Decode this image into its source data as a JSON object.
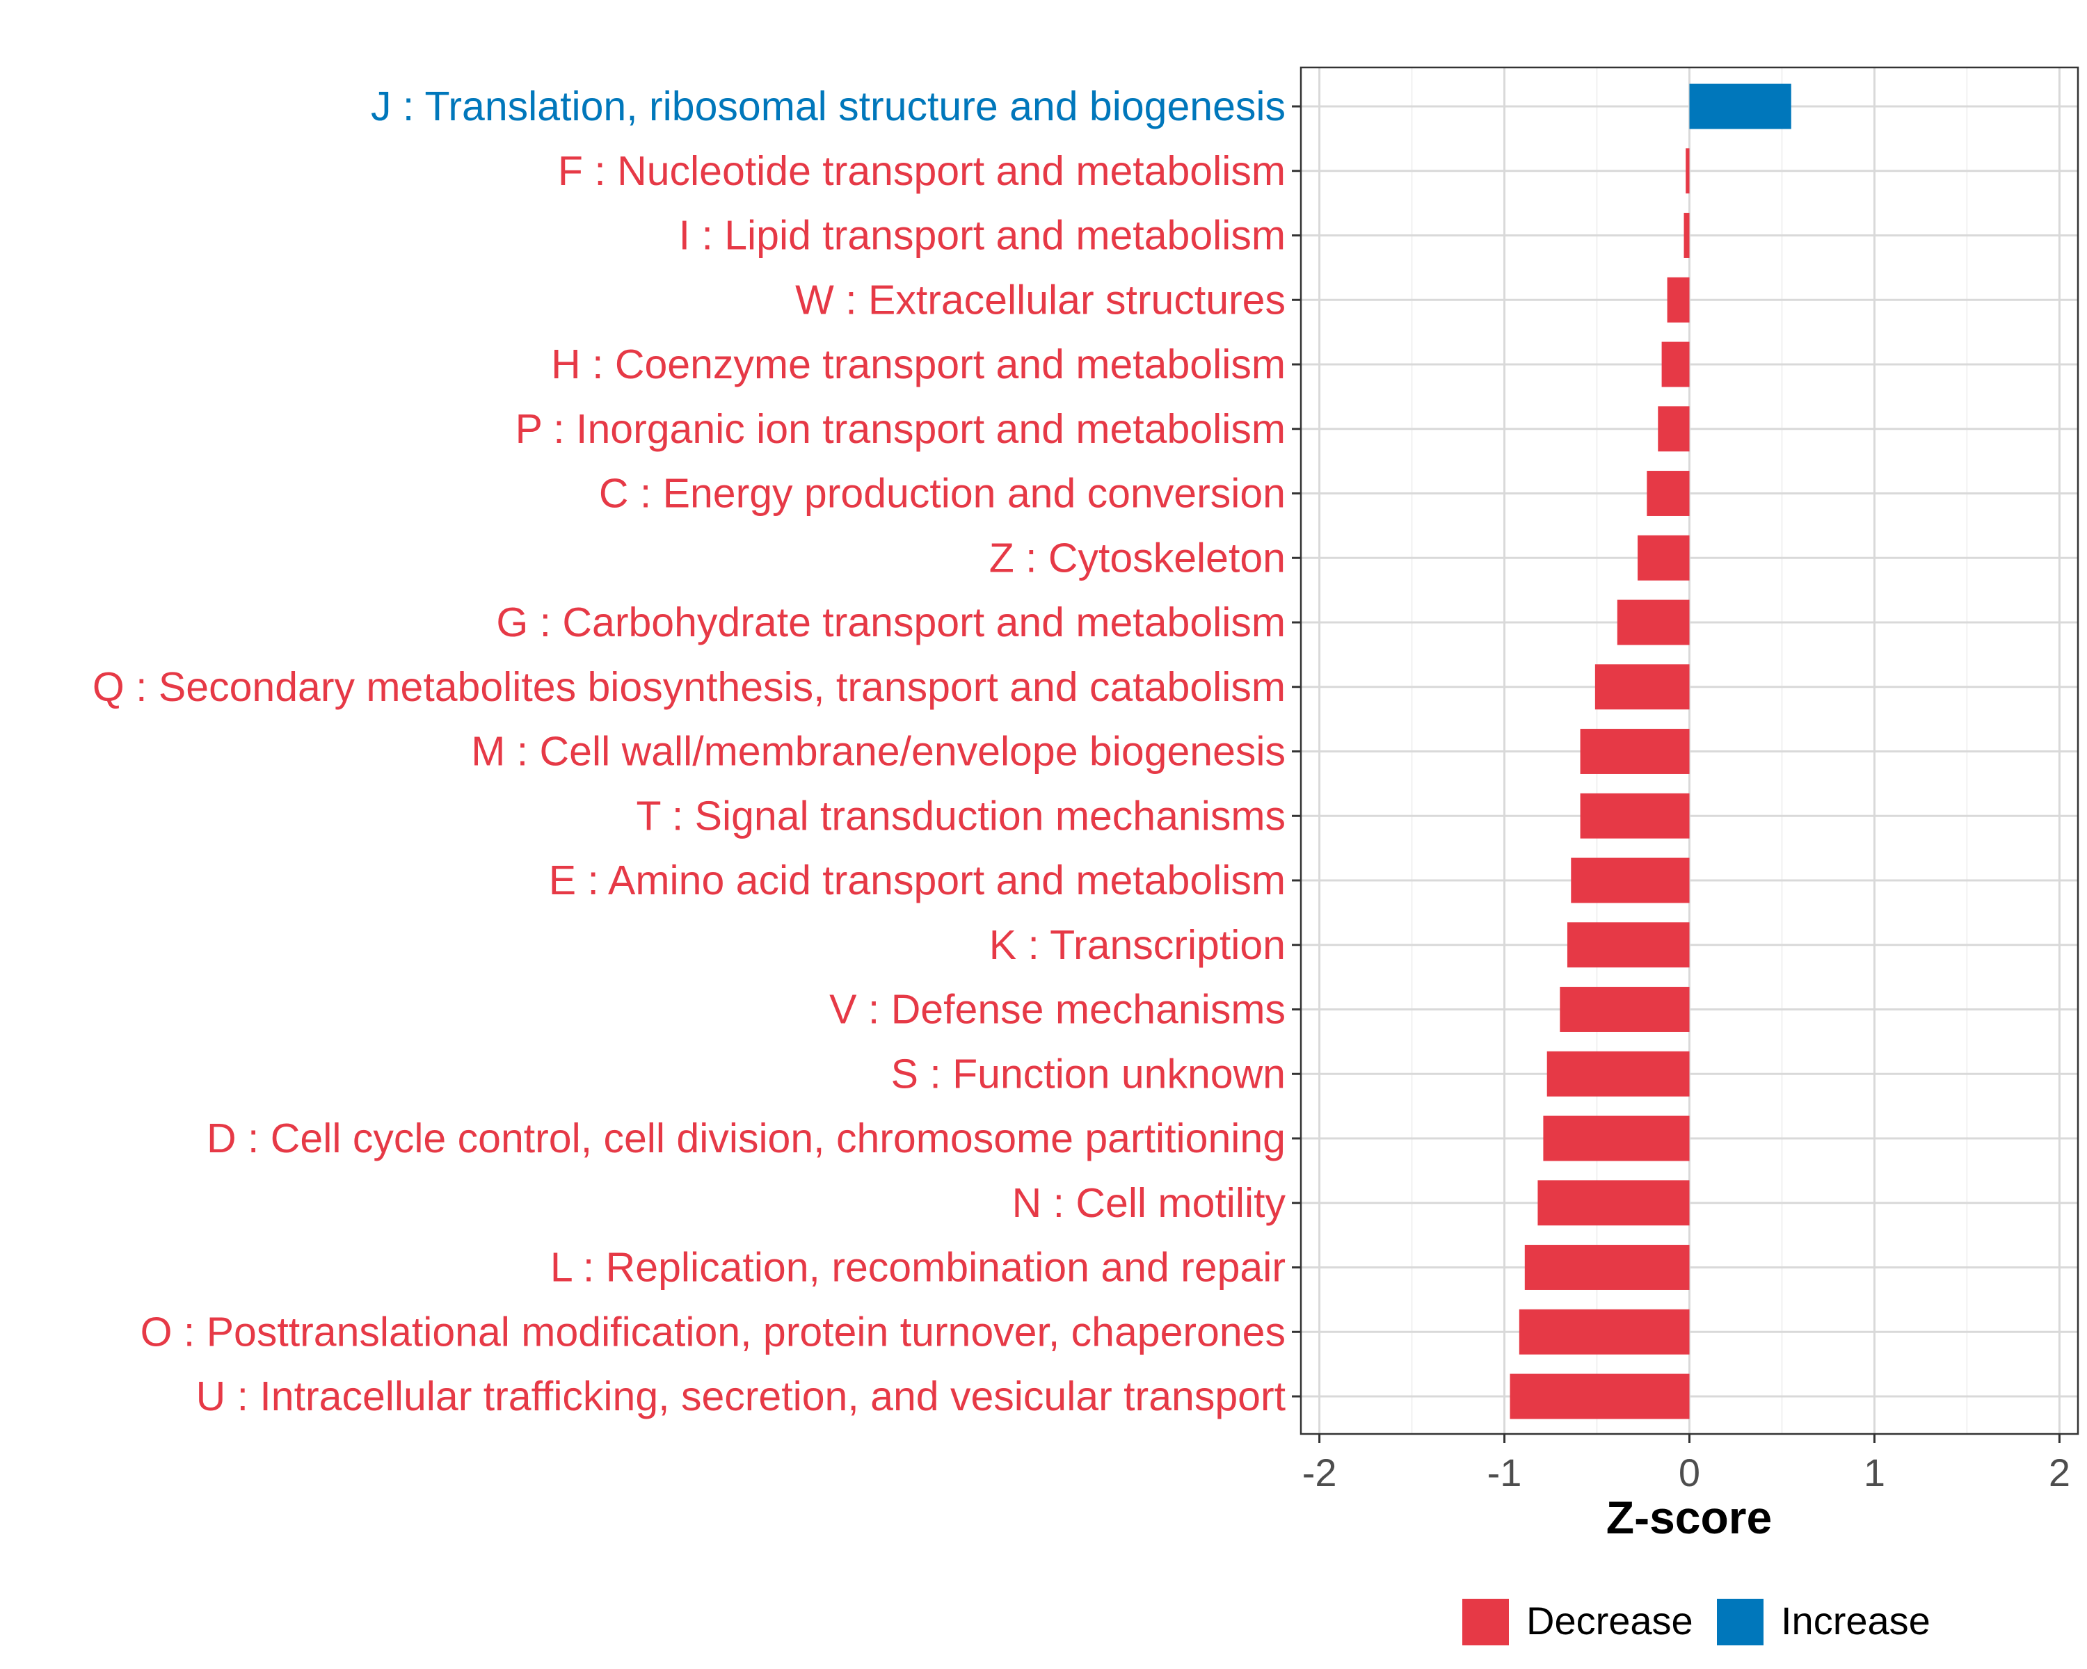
{
  "chart_data": {
    "type": "bar",
    "orientation": "horizontal",
    "title": "",
    "xlabel": "Z-score",
    "ylabel": "",
    "xlim": [
      -2.1,
      2.1
    ],
    "xticks": [
      -2,
      -1,
      0,
      1,
      2
    ],
    "xtick_labels": [
      "-2",
      "-1",
      "0",
      "1",
      "2"
    ],
    "grid": true,
    "legend_position": "bottom",
    "colors": {
      "Decrease": "#e63946",
      "Increase": "#0077bb"
    },
    "legend": [
      {
        "label": "Decrease",
        "color": "#e63946"
      },
      {
        "label": "Increase",
        "color": "#0077bb"
      }
    ],
    "categories": [
      "J : Translation, ribosomal structure and biogenesis",
      "F : Nucleotide transport and metabolism",
      "I : Lipid transport and metabolism",
      "W : Extracellular structures",
      "H : Coenzyme transport and metabolism",
      "P : Inorganic ion transport and metabolism",
      "C : Energy production and conversion",
      "Z : Cytoskeleton",
      "G : Carbohydrate transport and metabolism",
      "Q : Secondary metabolites biosynthesis, transport and catabolism",
      "M : Cell wall/membrane/envelope biogenesis",
      "T : Signal transduction mechanisms",
      "E : Amino acid transport and metabolism",
      "K : Transcription",
      "V : Defense mechanisms",
      "S : Function unknown",
      "D : Cell cycle control, cell division, chromosome partitioning",
      "N : Cell motility",
      "L : Replication, recombination and repair",
      "O : Posttranslational modification, protein turnover, chaperones",
      "U : Intracellular trafficking, secretion, and vesicular transport"
    ],
    "values": [
      0.55,
      -0.02,
      -0.03,
      -0.12,
      -0.15,
      -0.17,
      -0.23,
      -0.28,
      -0.39,
      -0.51,
      -0.59,
      -0.59,
      -0.64,
      -0.66,
      -0.7,
      -0.77,
      -0.79,
      -0.82,
      -0.89,
      -0.92,
      -0.97
    ],
    "direction": [
      "Increase",
      "Decrease",
      "Decrease",
      "Decrease",
      "Decrease",
      "Decrease",
      "Decrease",
      "Decrease",
      "Decrease",
      "Decrease",
      "Decrease",
      "Decrease",
      "Decrease",
      "Decrease",
      "Decrease",
      "Decrease",
      "Decrease",
      "Decrease",
      "Decrease",
      "Decrease",
      "Decrease"
    ]
  }
}
